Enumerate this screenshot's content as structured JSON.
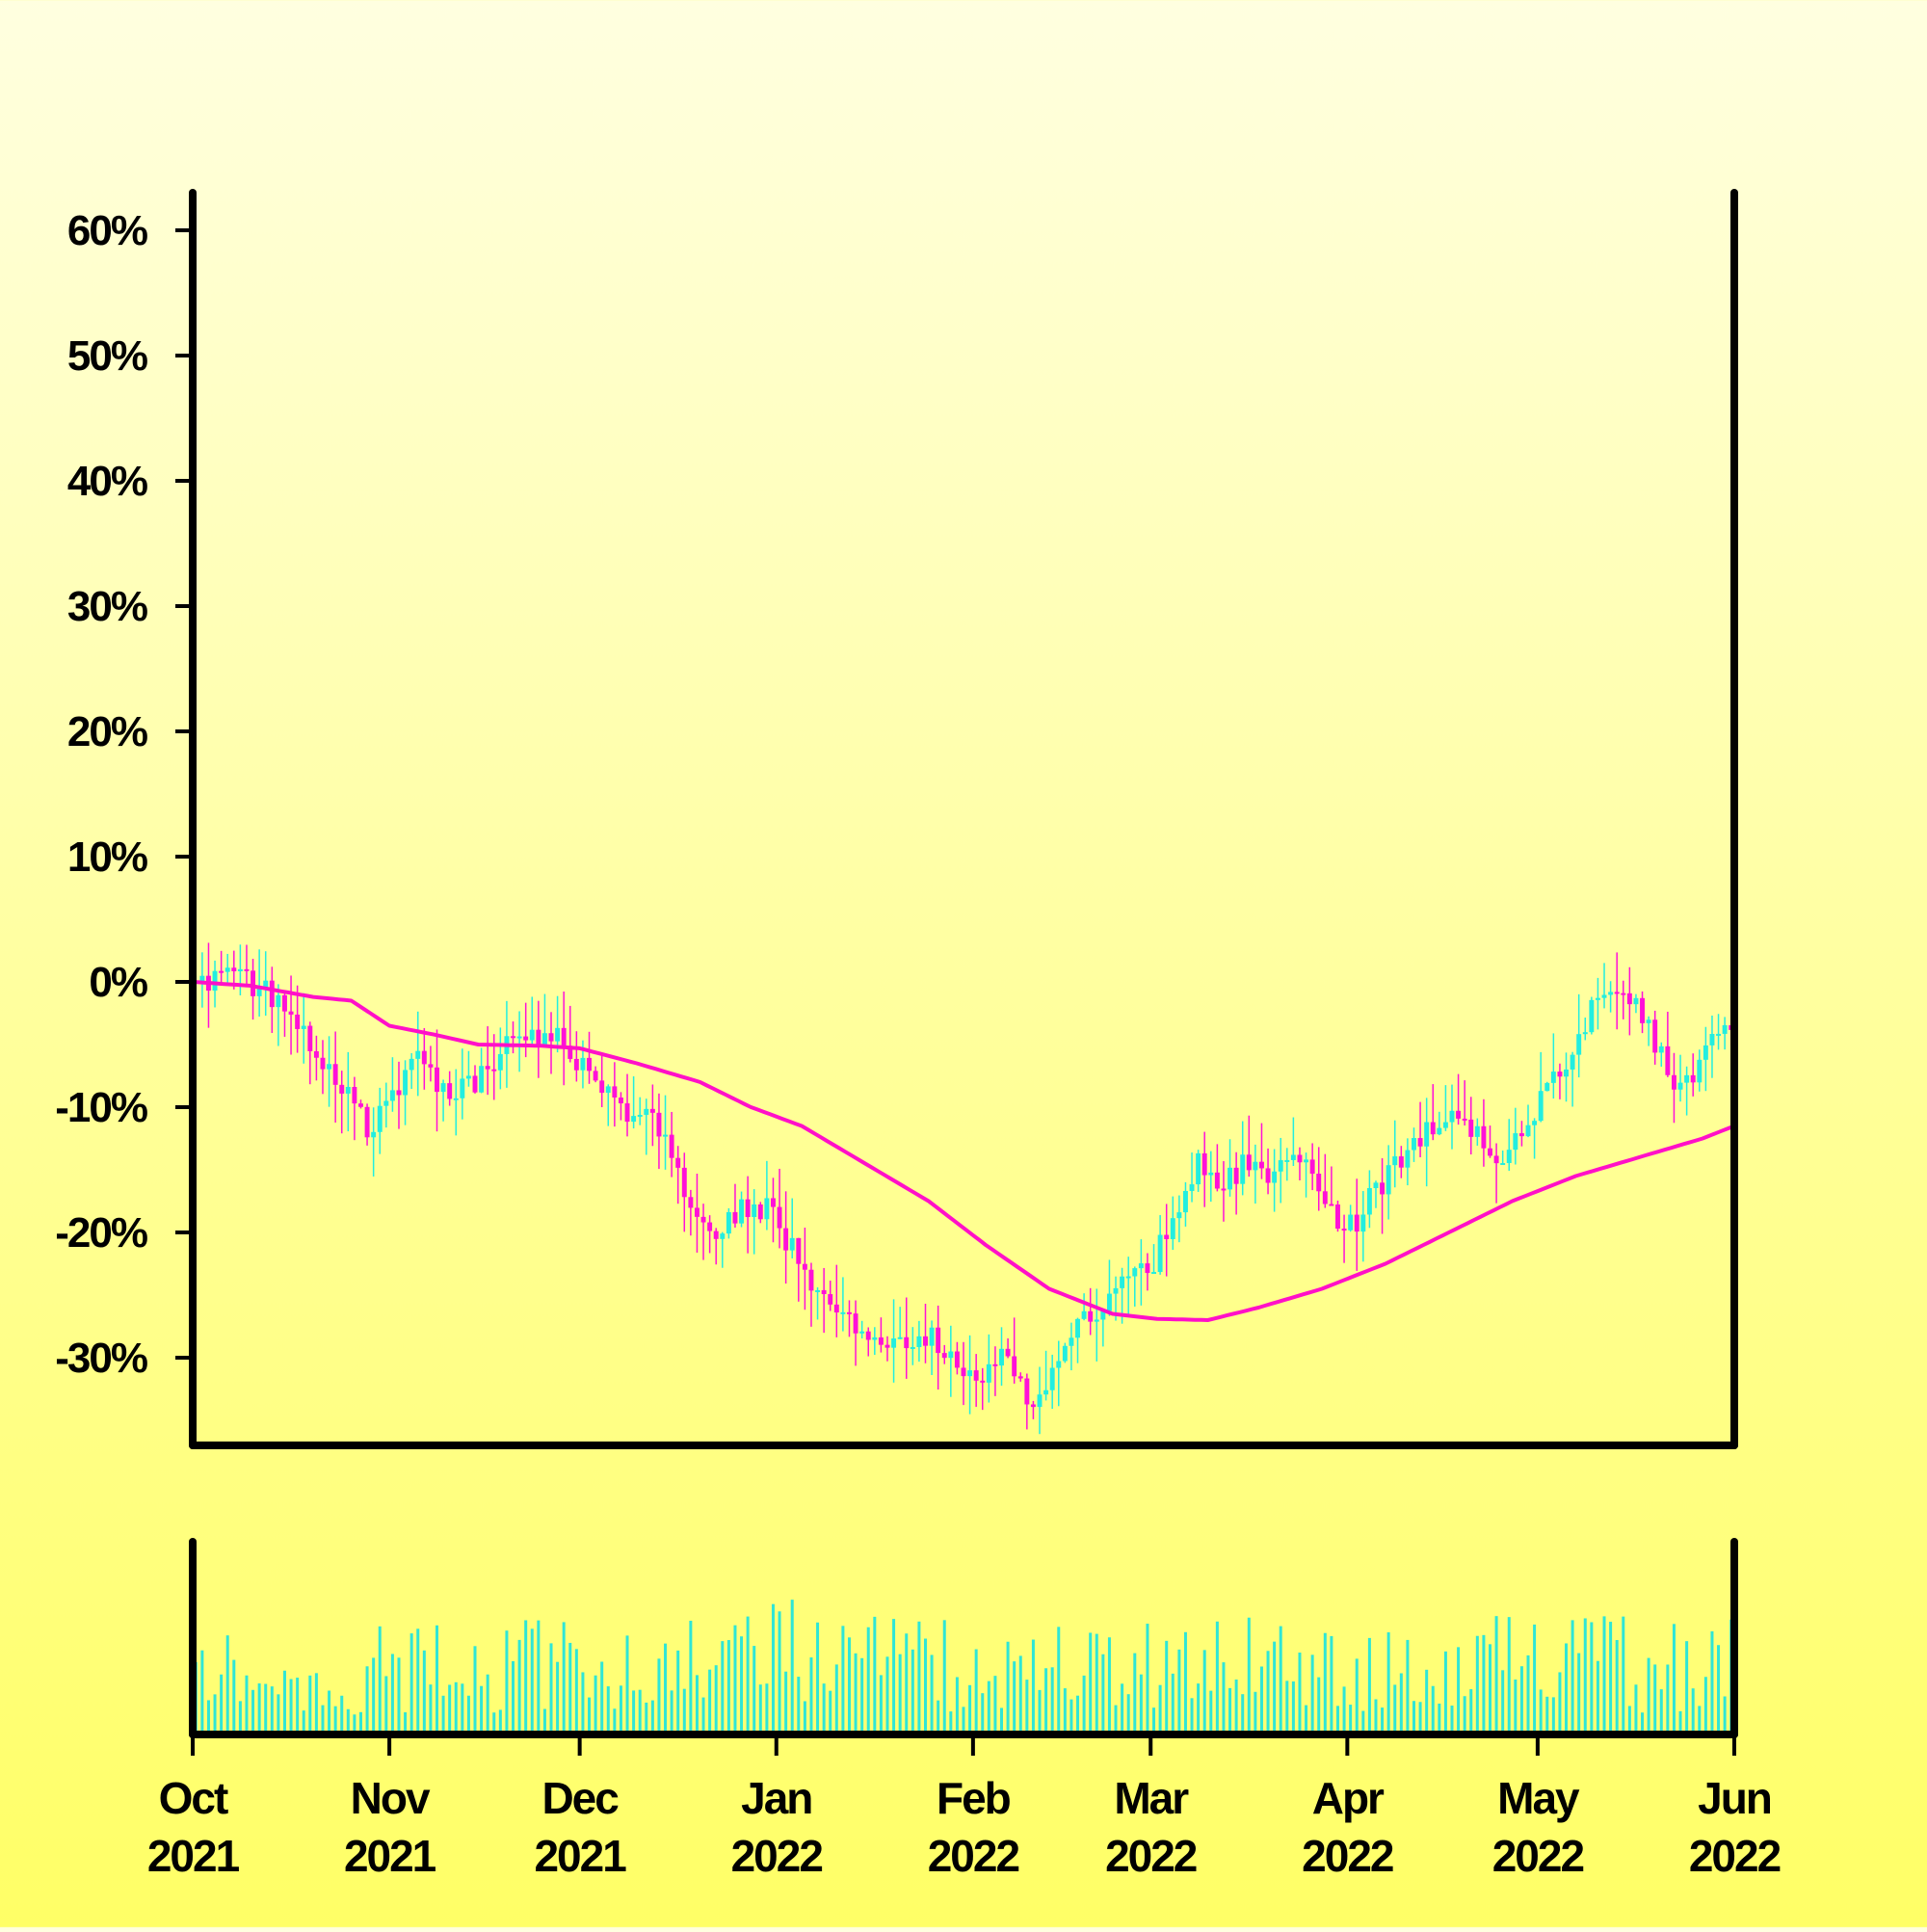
{
  "chart_data": {
    "type": "candlestick",
    "title": "",
    "xlabel": "",
    "ylabel": "",
    "ylim": [
      -37,
      63
    ],
    "y_ticks": [
      "-30%",
      "-20%",
      "-10%",
      "0%",
      "10%",
      "20%",
      "30%",
      "40%",
      "50%",
      "60%"
    ],
    "y_tick_values": [
      -30,
      -20,
      -10,
      0,
      10,
      20,
      30,
      40,
      50,
      60
    ],
    "x_ticks": [
      {
        "month": "Oct",
        "year": "2021",
        "date": "2021-10-01"
      },
      {
        "month": "Nov",
        "year": "2021",
        "date": "2021-11-01"
      },
      {
        "month": "Dec",
        "year": "2021",
        "date": "2021-12-01"
      },
      {
        "month": "Jan",
        "year": "2022",
        "date": "2022-01-01"
      },
      {
        "month": "Feb",
        "year": "2022",
        "date": "2022-02-01"
      },
      {
        "month": "Mar",
        "year": "2022",
        "date": "2022-03-01"
      },
      {
        "month": "Apr",
        "year": "2022",
        "date": "2022-04-01"
      },
      {
        "month": "May",
        "year": "2022",
        "date": "2022-05-01"
      },
      {
        "month": "Jun",
        "year": "2022",
        "date": "2022-06-01"
      }
    ],
    "x_range": [
      "2021-10-01",
      "2022-06-01"
    ],
    "close_path": [
      [
        "2021-10-01",
        0
      ],
      [
        "2021-10-08",
        1
      ],
      [
        "2021-10-15",
        -2
      ],
      [
        "2021-10-20",
        -5
      ],
      [
        "2021-10-25",
        -9
      ],
      [
        "2021-10-29",
        -12
      ],
      [
        "2021-11-03",
        -8
      ],
      [
        "2021-11-06",
        -6
      ],
      [
        "2021-11-10",
        -9
      ],
      [
        "2021-11-15",
        -8
      ],
      [
        "2021-11-20",
        -5
      ],
      [
        "2021-11-27",
        -4
      ],
      [
        "2021-12-02",
        -7
      ],
      [
        "2021-12-08",
        -10
      ],
      [
        "2021-12-14",
        -12
      ],
      [
        "2021-12-18",
        -17
      ],
      [
        "2021-12-22",
        -20
      ],
      [
        "2021-12-26",
        -18
      ],
      [
        "2021-12-31",
        -18
      ],
      [
        "2022-01-04",
        -22
      ],
      [
        "2022-01-10",
        -26
      ],
      [
        "2022-01-15",
        -28
      ],
      [
        "2022-01-20",
        -29
      ],
      [
        "2022-01-25",
        -28
      ],
      [
        "2022-01-30",
        -31
      ],
      [
        "2022-02-03",
        -32
      ],
      [
        "2022-02-06",
        -28
      ],
      [
        "2022-02-10",
        -35
      ],
      [
        "2022-02-14",
        -30
      ],
      [
        "2022-02-18",
        -27
      ],
      [
        "2022-02-23",
        -25
      ],
      [
        "2022-03-01",
        -23
      ],
      [
        "2022-03-05",
        -18
      ],
      [
        "2022-03-09",
        -14
      ],
      [
        "2022-03-12",
        -17
      ],
      [
        "2022-03-16",
        -14
      ],
      [
        "2022-03-20",
        -16
      ],
      [
        "2022-03-24",
        -14
      ],
      [
        "2022-03-28",
        -17
      ],
      [
        "2022-04-01",
        -20
      ],
      [
        "2022-04-05",
        -17
      ],
      [
        "2022-04-09",
        -14
      ],
      [
        "2022-04-13",
        -12
      ],
      [
        "2022-04-17",
        -10
      ],
      [
        "2022-04-20",
        -12
      ],
      [
        "2022-04-25",
        -14
      ],
      [
        "2022-04-29",
        -12
      ],
      [
        "2022-05-03",
        -8
      ],
      [
        "2022-05-08",
        -4
      ],
      [
        "2022-05-12",
        0
      ],
      [
        "2022-05-16",
        -2
      ],
      [
        "2022-05-20",
        -5
      ],
      [
        "2022-05-24",
        -9
      ],
      [
        "2022-05-27",
        -5
      ],
      [
        "2022-06-01",
        -4
      ]
    ],
    "moving_average": [
      [
        "2021-10-01",
        0
      ],
      [
        "2021-10-10",
        -0.3
      ],
      [
        "2021-10-20",
        -1.2
      ],
      [
        "2021-10-26",
        -1.5
      ],
      [
        "2021-11-01",
        -3.5
      ],
      [
        "2021-11-08",
        -4.2
      ],
      [
        "2021-11-15",
        -5.0
      ],
      [
        "2021-11-25",
        -5.1
      ],
      [
        "2021-12-01",
        -5.3
      ],
      [
        "2021-12-10",
        -6.5
      ],
      [
        "2021-12-20",
        -8.0
      ],
      [
        "2021-12-28",
        -10.0
      ],
      [
        "2022-01-05",
        -11.5
      ],
      [
        "2022-01-15",
        -14.5
      ],
      [
        "2022-01-25",
        -17.5
      ],
      [
        "2022-02-03",
        -21.0
      ],
      [
        "2022-02-13",
        -24.5
      ],
      [
        "2022-02-23",
        -26.5
      ],
      [
        "2022-03-02",
        -26.9
      ],
      [
        "2022-03-10",
        -27.0
      ],
      [
        "2022-03-18",
        -26.0
      ],
      [
        "2022-03-28",
        -24.5
      ],
      [
        "2022-04-07",
        -22.5
      ],
      [
        "2022-04-17",
        -20.0
      ],
      [
        "2022-04-27",
        -17.5
      ],
      [
        "2022-05-07",
        -15.5
      ],
      [
        "2022-05-17",
        -14.0
      ],
      [
        "2022-05-27",
        -12.5
      ],
      [
        "2022-06-01",
        -11.5
      ]
    ],
    "colors": {
      "up": "#22eee0",
      "down": "#ff10d8",
      "ma_line": "#ff10c8",
      "volume": "#2fe6d6",
      "axis": "#000000"
    },
    "series": [
      {
        "name": "",
        "role": "price_candles"
      },
      {
        "name": "",
        "role": "moving_average"
      },
      {
        "name": "",
        "role": "volume"
      }
    ],
    "grid": false,
    "legend": "none"
  }
}
